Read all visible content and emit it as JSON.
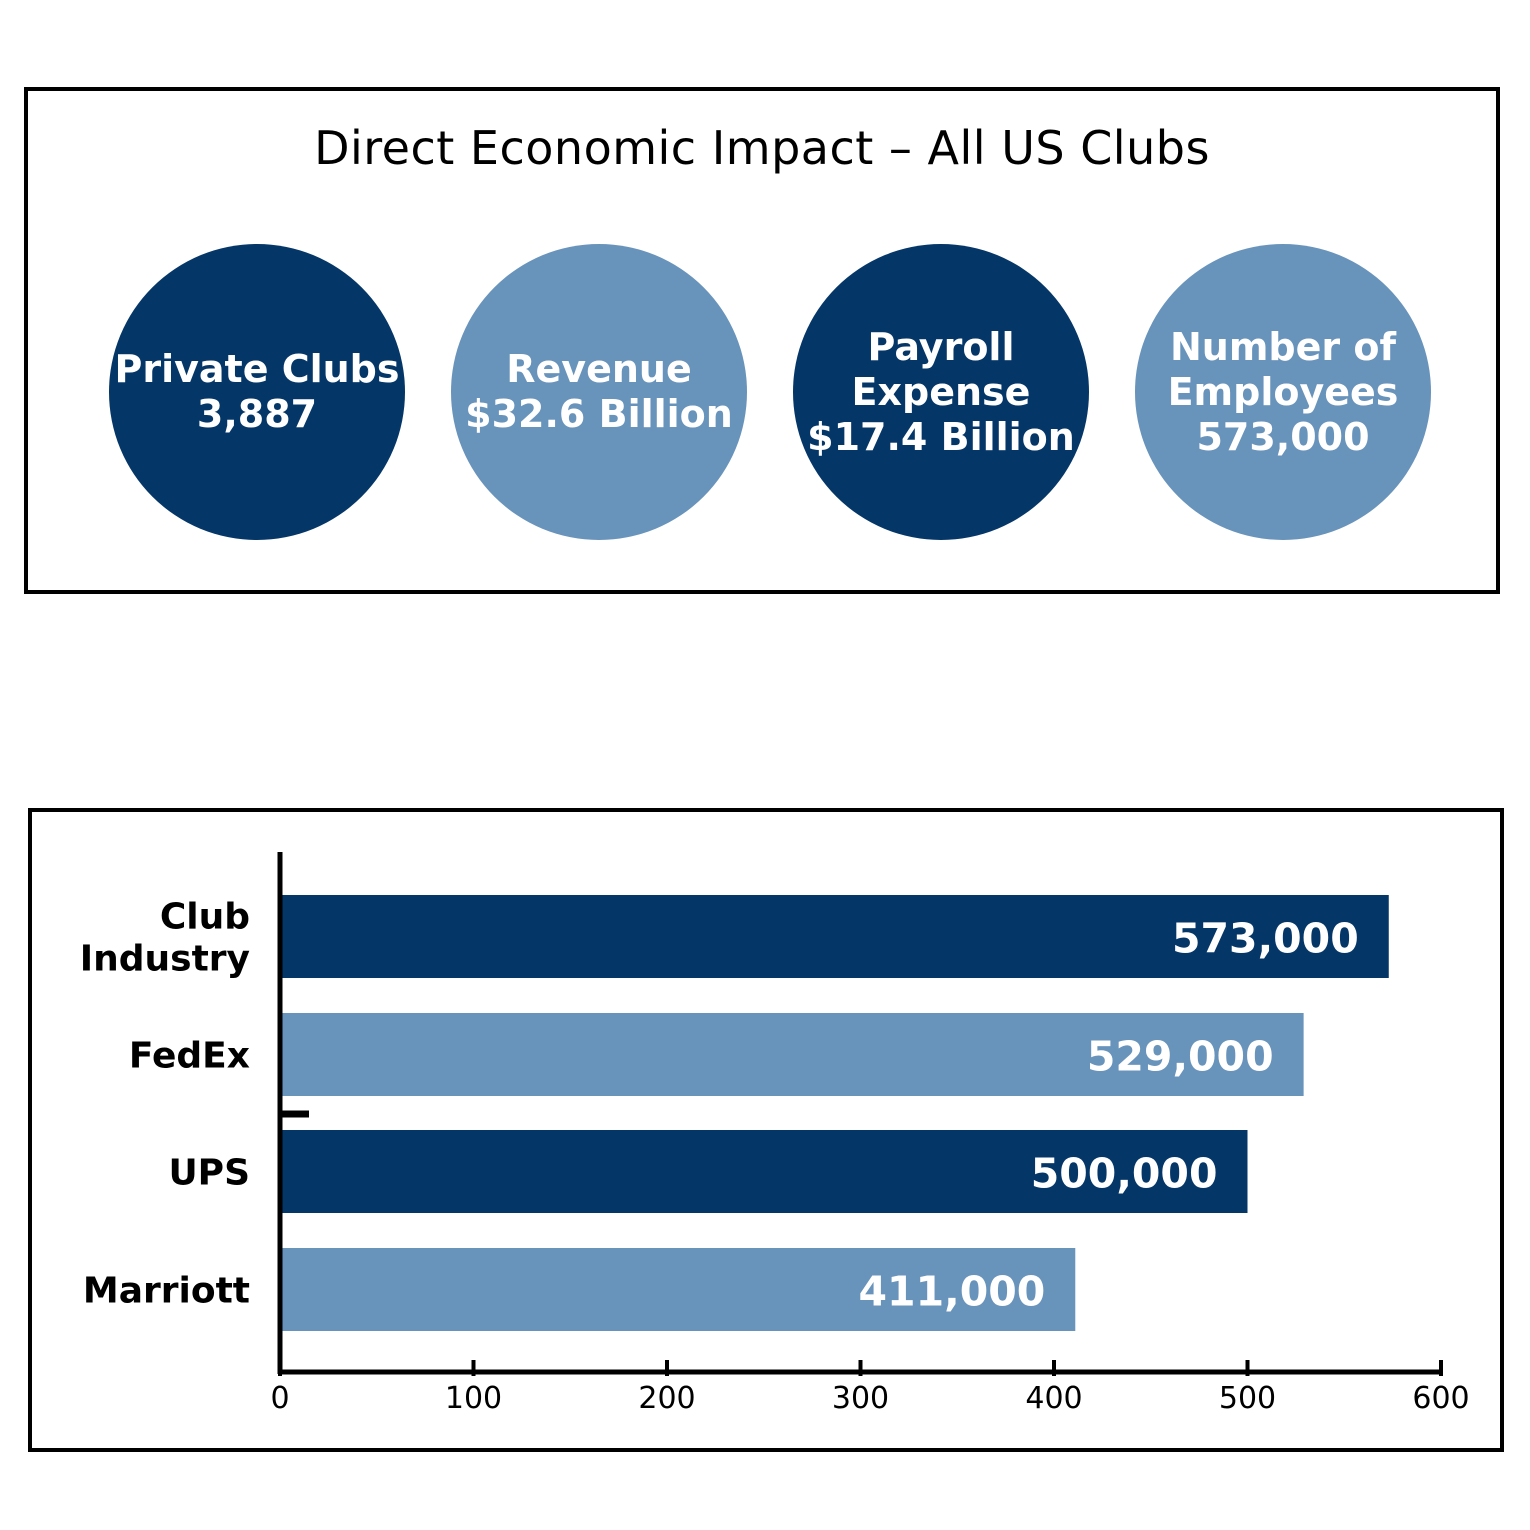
{
  "impact": {
    "title": "Direct Economic Impact – All US Clubs",
    "circles": [
      {
        "lines": [
          "Private Clubs",
          "3,887"
        ],
        "tone": "dark"
      },
      {
        "lines": [
          "Revenue",
          "$32.6 Billion"
        ],
        "tone": "light"
      },
      {
        "lines": [
          "Payroll",
          "Expense",
          "$17.4 Billion"
        ],
        "tone": "dark"
      },
      {
        "lines": [
          "Number of",
          "Employees",
          "573,000"
        ],
        "tone": "light"
      }
    ]
  },
  "colors": {
    "dark": "#043667",
    "light": "#6893bb"
  },
  "chart_data": {
    "type": "bar",
    "orientation": "horizontal",
    "title": "",
    "xlabel": "",
    "ylabel": "",
    "categories": [
      [
        "Club",
        "Industry"
      ],
      [
        "FedEx"
      ],
      [
        "UPS"
      ],
      [
        "Marriott"
      ]
    ],
    "values": [
      573,
      529,
      500,
      411
    ],
    "data_labels": [
      "573,000",
      "529,000",
      "500,000",
      "411,000"
    ],
    "bar_tones": [
      "dark",
      "light",
      "dark",
      "light"
    ],
    "xlim": [
      0,
      600
    ],
    "xticks": [
      0,
      100,
      200,
      300,
      400,
      500,
      600
    ],
    "grid": false,
    "legend": "none"
  }
}
